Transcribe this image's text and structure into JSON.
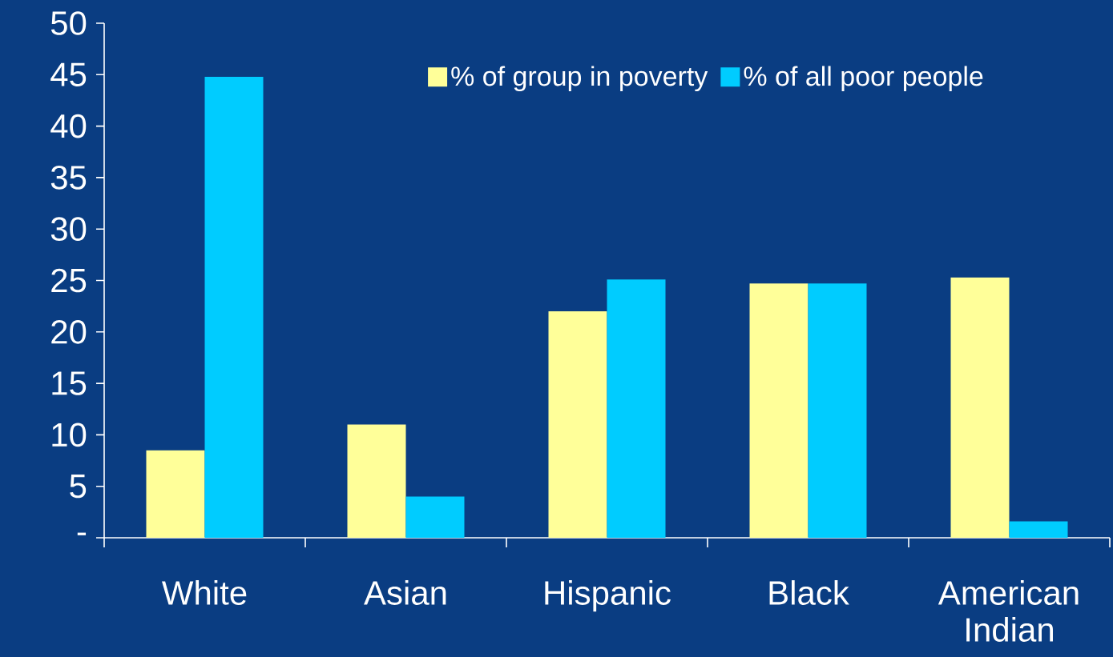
{
  "chart_data": {
    "type": "bar",
    "categories": [
      "White",
      "Asian",
      "Hispanic",
      "Black",
      "American Indian"
    ],
    "series": [
      {
        "name": "% of group in poverty",
        "color": "#ffff99",
        "values": [
          8.5,
          11,
          22,
          24.7,
          25.3
        ]
      },
      {
        "name": "% of all poor people",
        "color": "#00ccff",
        "values": [
          44.8,
          4,
          25.1,
          24.7,
          1.6
        ]
      }
    ],
    "ylim": [
      0,
      50
    ],
    "yticks": [
      {
        "value": 0,
        "label": "-"
      },
      5,
      10,
      15,
      20,
      25,
      30,
      35,
      40,
      45,
      50
    ],
    "grid": false,
    "legend": "top"
  }
}
